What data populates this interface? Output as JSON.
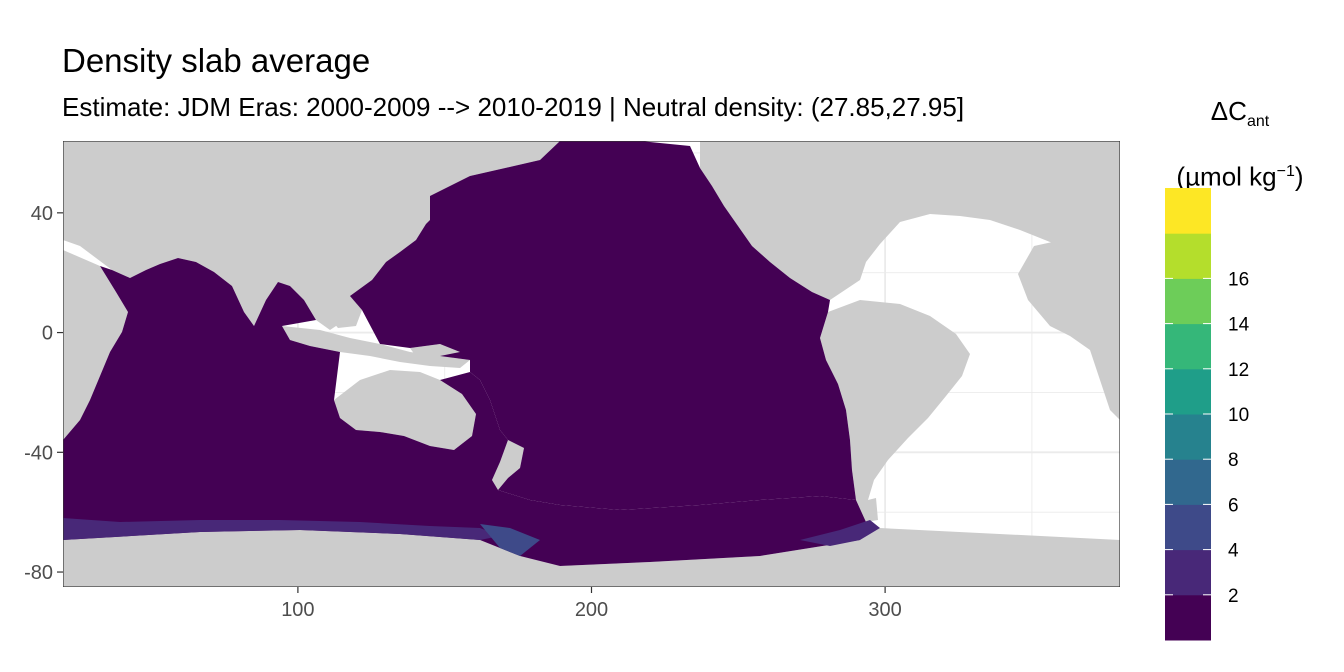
{
  "title": "Density slab average",
  "subtitle": "Estimate: JDM Eras: 2000-2009 --> 2010-2019 | Neutral density: (27.85,27.95]",
  "legend": {
    "title_main": "ΔC",
    "title_sub": "ant",
    "unit_prefix": "(µmol kg",
    "unit_sup": "−1",
    "unit_suffix": ")",
    "ticks": [
      "2",
      "4",
      "6",
      "8",
      "10",
      "12",
      "14",
      "16"
    ],
    "colors": [
      "#440154",
      "#482878",
      "#3E4A89",
      "#31688E",
      "#26828E",
      "#1F9E89",
      "#35B779",
      "#6DCD59",
      "#B4DE2C",
      "#FDE725"
    ]
  },
  "colors": {
    "land": "#cccccc",
    "ocean_value": "#440154",
    "antarctic_shelf": "#482878",
    "antarctic_shelf_2": "#3E4A89",
    "nodata": "#ffffff",
    "grid": "#ebebeb",
    "axis": "#333333"
  },
  "chart_data": {
    "type": "heatmap",
    "xlim": [
      20,
      380
    ],
    "ylim": [
      -85,
      64
    ],
    "x_ticks": [
      100,
      200,
      300
    ],
    "y_ticks": [
      40,
      0,
      -40,
      -80
    ],
    "x_tick_labels": [
      "100",
      "200",
      "300"
    ],
    "y_tick_labels": [
      "40",
      "0",
      "-40",
      "-80"
    ],
    "value_bins": [
      0,
      2,
      4,
      6,
      8,
      10,
      12,
      14,
      16,
      18
    ],
    "grid": true,
    "legend_position": "right",
    "dominant_value_range": [
      0,
      2
    ],
    "antarctic_shelf_value_range": [
      2,
      6
    ]
  }
}
